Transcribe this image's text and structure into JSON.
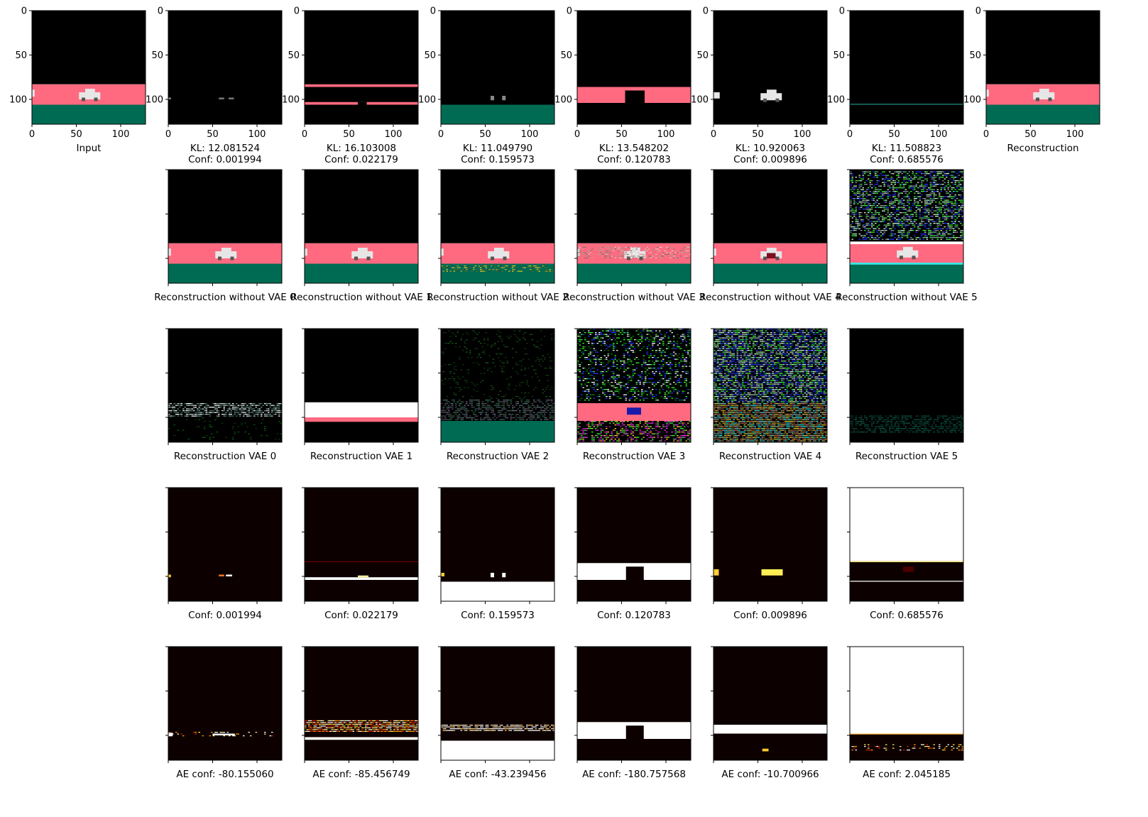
{
  "chart_data": {
    "type": "image-grid",
    "rows": 5,
    "cols": 8,
    "axis_ticks": [
      "0",
      "50",
      "100"
    ],
    "colors": {
      "road_pink": "#ff6a80",
      "grass_green": "#006b53",
      "car_white": "#e6e6e6",
      "heat_dark": "#0d0000",
      "heat_hot": "#ffffff",
      "noise_green": "#33ff33",
      "noise_blue": "#2233ff",
      "noise_cyan": "#22eeee"
    },
    "panels": [
      [
        {
          "scene": "full",
          "caption": "Input"
        },
        {
          "scene": "mask_road_car",
          "caption": "KL: 12.081524\nConf: 0.001994"
        },
        {
          "scene": "mask_band_outline",
          "caption": "KL: 16.103008\nConf: 0.022179"
        },
        {
          "scene": "mask_grass",
          "caption": "KL: 11.049790\nConf: 0.159573"
        },
        {
          "scene": "mask_road",
          "caption": "KL: 13.548202\nConf: 0.120783"
        },
        {
          "scene": "mask_car",
          "caption": "KL: 10.920063\nConf: 0.009896"
        },
        {
          "scene": "mask_line",
          "caption": "KL: 11.508823\nConf: 0.685576"
        },
        {
          "scene": "full",
          "caption": "Reconstruction"
        }
      ],
      [
        null,
        {
          "scene": "full",
          "caption": "Reconstruction without VAE 0"
        },
        {
          "scene": "full",
          "caption": "Reconstruction without VAE 1"
        },
        {
          "scene": "full_noisy_grass",
          "caption": "Reconstruction without VAE 2"
        },
        {
          "scene": "full_blurry_road",
          "caption": "Reconstruction without VAE 3"
        },
        {
          "scene": "full_red_car",
          "caption": "Reconstruction without VAE 4"
        },
        {
          "scene": "full_noise_sky",
          "caption": "Reconstruction without VAE 5"
        },
        null
      ],
      [
        null,
        {
          "scene": "vae_blur_band",
          "caption": "Reconstruction VAE 0"
        },
        {
          "scene": "vae_white_band",
          "caption": "Reconstruction VAE 1"
        },
        {
          "scene": "vae_grass_noise",
          "caption": "Reconstruction VAE 2"
        },
        {
          "scene": "vae_noise_road",
          "caption": "Reconstruction VAE 3"
        },
        {
          "scene": "vae_noise_full",
          "caption": "Reconstruction VAE 4"
        },
        {
          "scene": "vae_dark_green",
          "caption": "Reconstruction VAE 5"
        },
        null
      ],
      [
        null,
        {
          "scene": "heat_dots",
          "caption": "Conf: 0.001994"
        },
        {
          "scene": "heat_line",
          "caption": "Conf: 0.022179"
        },
        {
          "scene": "heat_grass",
          "caption": "Conf: 0.159573"
        },
        {
          "scene": "heat_road",
          "caption": "Conf: 0.120783"
        },
        {
          "scene": "heat_car",
          "caption": "Conf: 0.009896"
        },
        {
          "scene": "heat_sky",
          "caption": "Conf: 0.685576"
        },
        null
      ],
      [
        null,
        {
          "scene": "ae_dots",
          "caption": "AE conf: -80.155060"
        },
        {
          "scene": "ae_fire_band",
          "caption": "AE conf: -85.456749"
        },
        {
          "scene": "ae_blobs_grass",
          "caption": "AE conf: -43.239456"
        },
        {
          "scene": "heat_road",
          "caption": "AE conf: -180.757568"
        },
        {
          "scene": "ae_band_spot",
          "caption": "AE conf: -10.700966"
        },
        {
          "scene": "ae_sky_spots",
          "caption": "AE conf: 2.045185"
        },
        null
      ]
    ]
  }
}
